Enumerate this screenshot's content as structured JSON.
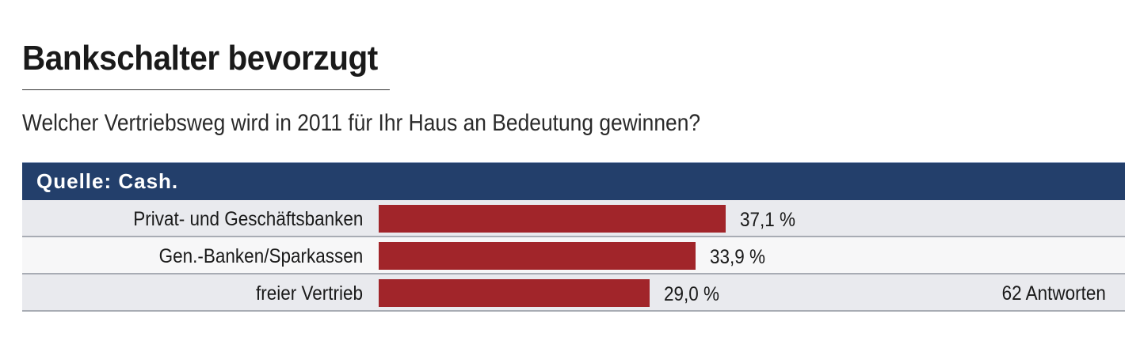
{
  "chart_data": {
    "type": "bar",
    "orientation": "horizontal",
    "title": "Bankschalter bevorzugt",
    "subtitle": "Welcher Vertriebsweg wird in 2011 für Ihr Haus an Bedeutung gewinnen?",
    "source": "Quelle: Cash.",
    "categories": [
      "Privat- und Geschäftsbanken",
      "Gen.-Banken/Sparkassen",
      "freier Vertrieb"
    ],
    "values": [
      37.1,
      33.9,
      29.0
    ],
    "value_labels": [
      "37,1 %",
      "33,9 %",
      "29,0 %"
    ],
    "unit": "%",
    "note": "62 Antworten",
    "xlim": [
      0,
      100
    ],
    "grid": false,
    "colors": {
      "bar": "#a1252a",
      "source_band": "#233f6b"
    }
  }
}
